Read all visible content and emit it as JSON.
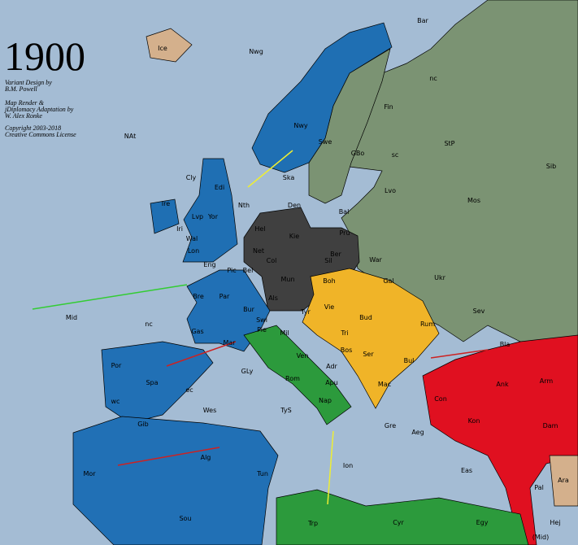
{
  "title": "1900",
  "credits": [
    "Variant Design by",
    "B.M. Powell",
    "Map Render &",
    "jDiplomacy Adaptation by",
    "W. Alex Ronke",
    "Copyright 2003-2018",
    "Creative Commons License"
  ],
  "provinces": [
    "Bar",
    "Nwg",
    "Ice",
    "NAt",
    "nc",
    "Fin",
    "StP",
    "Sib",
    "Nwy",
    "Swe",
    "GBo",
    "sc",
    "Cly",
    "Edi",
    "Ska",
    "Den",
    "Lvo",
    "Mos",
    "Ire",
    "Lvp",
    "Yor",
    "Nth",
    "Bal",
    "Iri",
    "Hel",
    "Kie",
    "Pru",
    "Wal",
    "Lon",
    "Net",
    "Ber",
    "War",
    "Sil",
    "Eng",
    "Pic",
    "Bel",
    "Col",
    "Gal",
    "Ukr",
    "Bre",
    "Mun",
    "Boh",
    "Par",
    "Als",
    "Vie",
    "Sev",
    "Mid",
    "nc",
    "Bur",
    "Tyr",
    "Bud",
    "Rum",
    "Gas",
    "Swi",
    "Pie",
    "Mil",
    "Tri",
    "Bla",
    "Bos",
    "Ser",
    "Bul",
    "Mar",
    "Ven",
    "Por",
    "GLy",
    "Spa",
    "Adr",
    "Rom",
    "Apu",
    "Mac",
    "Arm",
    "Ank",
    "Con",
    "ec",
    "wc",
    "TyS",
    "Nap",
    "Kon",
    "Gib",
    "Wes",
    "Gre",
    "Aeg",
    "Dam",
    "Ion",
    "Mor",
    "Alg",
    "Eas",
    "Pal",
    "Ara",
    "Tun",
    "Sou",
    "Trp",
    "Cyr",
    "Egy",
    "Hej",
    "(Mid)"
  ]
}
